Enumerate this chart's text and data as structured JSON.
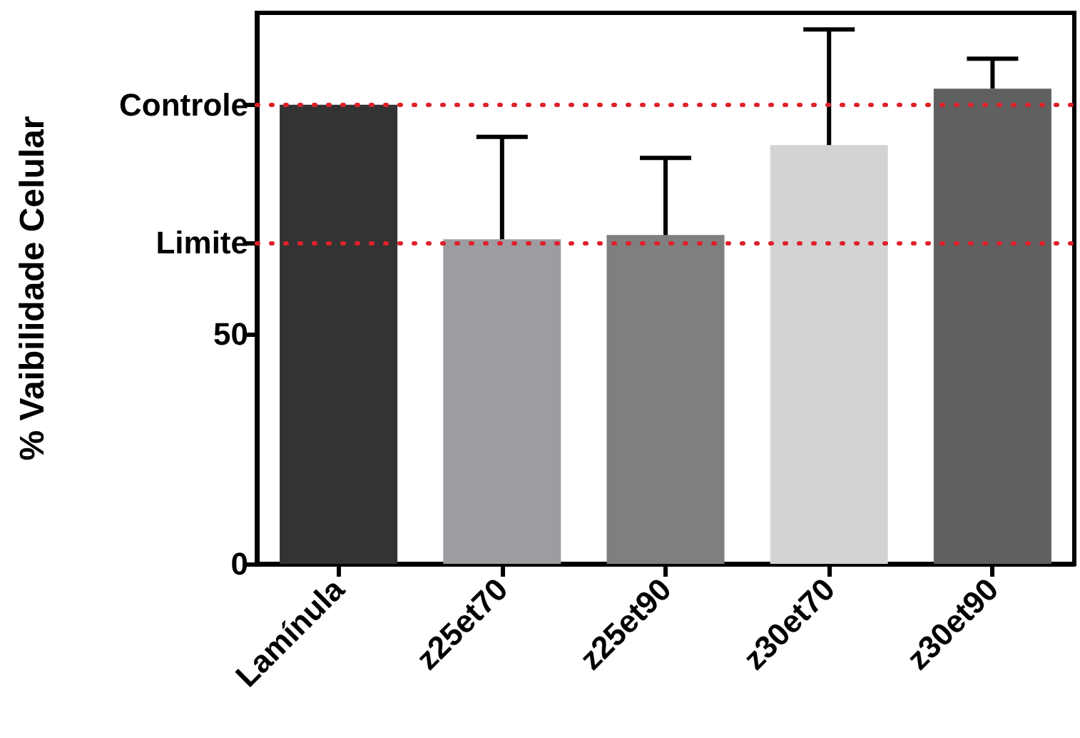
{
  "chart_data": {
    "type": "bar",
    "ylabel": "% Vaibilidade Celular",
    "categories": [
      "Lamínula",
      "z25et70",
      "z25et90",
      "z30et70",
      "z30et90"
    ],
    "values": [
      100,
      70.7,
      71.6,
      91.2,
      103.5
    ],
    "colors": [
      "#333333",
      "#9d9da1",
      "#7f7f7f",
      "#d3d3d3",
      "#606060"
    ],
    "errors": [
      null,
      [
        70.7,
        93
      ],
      [
        71.6,
        88.4
      ],
      [
        91.2,
        116.4
      ],
      [
        103.5,
        110
      ]
    ],
    "ylim": [
      0,
      120
    ],
    "yticks": [
      0,
      50,
      {
        "value": 70,
        "label": "Limite"
      },
      {
        "value": 100,
        "label": "Controle"
      }
    ],
    "ref_lines": [
      {
        "axis": "y",
        "value": 100,
        "color": "#e0202a",
        "line_style": "dotted"
      },
      {
        "axis": "y",
        "value": 70,
        "color": "#e0202a",
        "line_style": "dotted"
      }
    ],
    "grid": false
  }
}
